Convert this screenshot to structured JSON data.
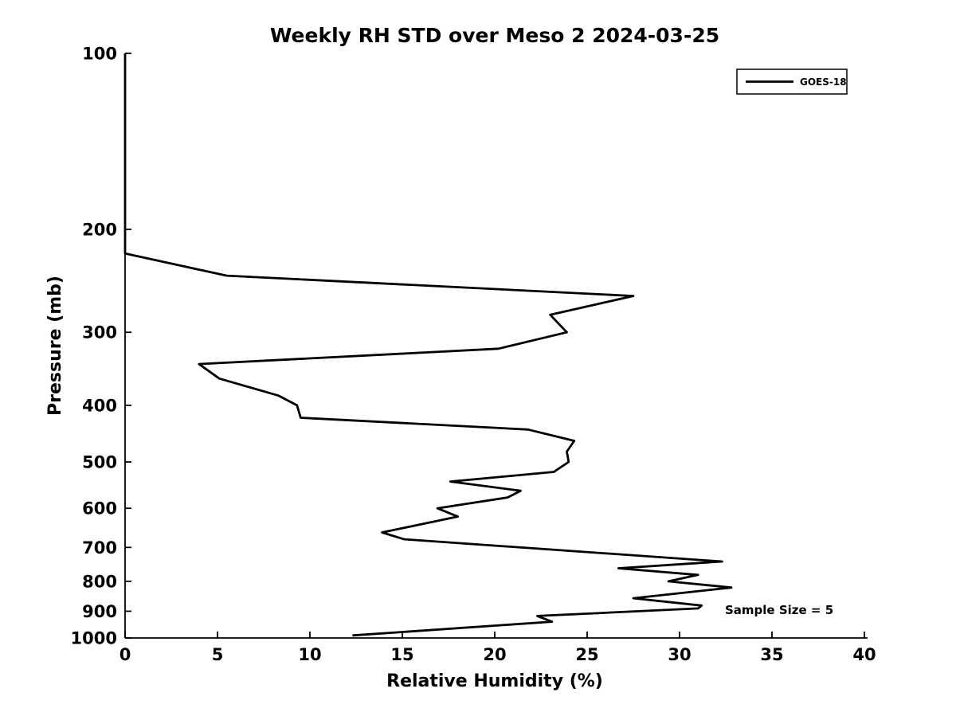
{
  "chart_data": {
    "type": "line",
    "title": "Weekly RH STD over Meso 2 2024-03-25",
    "xlabel": "Relative Humidity (%)",
    "ylabel": "Pressure (mb)",
    "xlim": [
      0,
      40
    ],
    "ylim": [
      100,
      1000
    ],
    "y_scale": "log",
    "y_inverted": true,
    "xticks": [
      0,
      5,
      10,
      15,
      20,
      25,
      30,
      35,
      40
    ],
    "yticks": [
      100,
      200,
      300,
      400,
      500,
      600,
      700,
      800,
      900,
      1000
    ],
    "grid": false,
    "legend": {
      "position": "top-right",
      "entries": [
        "GOES-18"
      ]
    },
    "annotation": "Sample Size = 5",
    "colors": {
      "line": "#000000",
      "background": "#ffffff",
      "text": "#000000"
    },
    "series": [
      {
        "name": "GOES-18",
        "points_format": "[relative_humidity_percent, pressure_mb]",
        "points": [
          [
            0.0,
            100
          ],
          [
            0.0,
            220
          ],
          [
            5.5,
            240
          ],
          [
            27.5,
            260
          ],
          [
            23.0,
            280
          ],
          [
            23.9,
            300
          ],
          [
            20.2,
            320
          ],
          [
            4.0,
            340
          ],
          [
            5.1,
            360
          ],
          [
            8.3,
            385
          ],
          [
            9.3,
            400
          ],
          [
            9.5,
            420
          ],
          [
            21.8,
            440
          ],
          [
            24.3,
            460
          ],
          [
            23.9,
            480
          ],
          [
            24.0,
            500
          ],
          [
            23.2,
            520
          ],
          [
            17.6,
            540
          ],
          [
            21.4,
            560
          ],
          [
            20.7,
            575
          ],
          [
            16.9,
            600
          ],
          [
            18.0,
            620
          ],
          [
            13.9,
            660
          ],
          [
            15.1,
            678
          ],
          [
            32.3,
            740
          ],
          [
            26.7,
            760
          ],
          [
            31.0,
            780
          ],
          [
            29.4,
            800
          ],
          [
            32.8,
            820
          ],
          [
            27.5,
            855
          ],
          [
            31.2,
            880
          ],
          [
            31.0,
            890
          ],
          [
            22.3,
            917
          ],
          [
            23.1,
            938
          ],
          [
            12.3,
            990
          ]
        ]
      }
    ]
  }
}
